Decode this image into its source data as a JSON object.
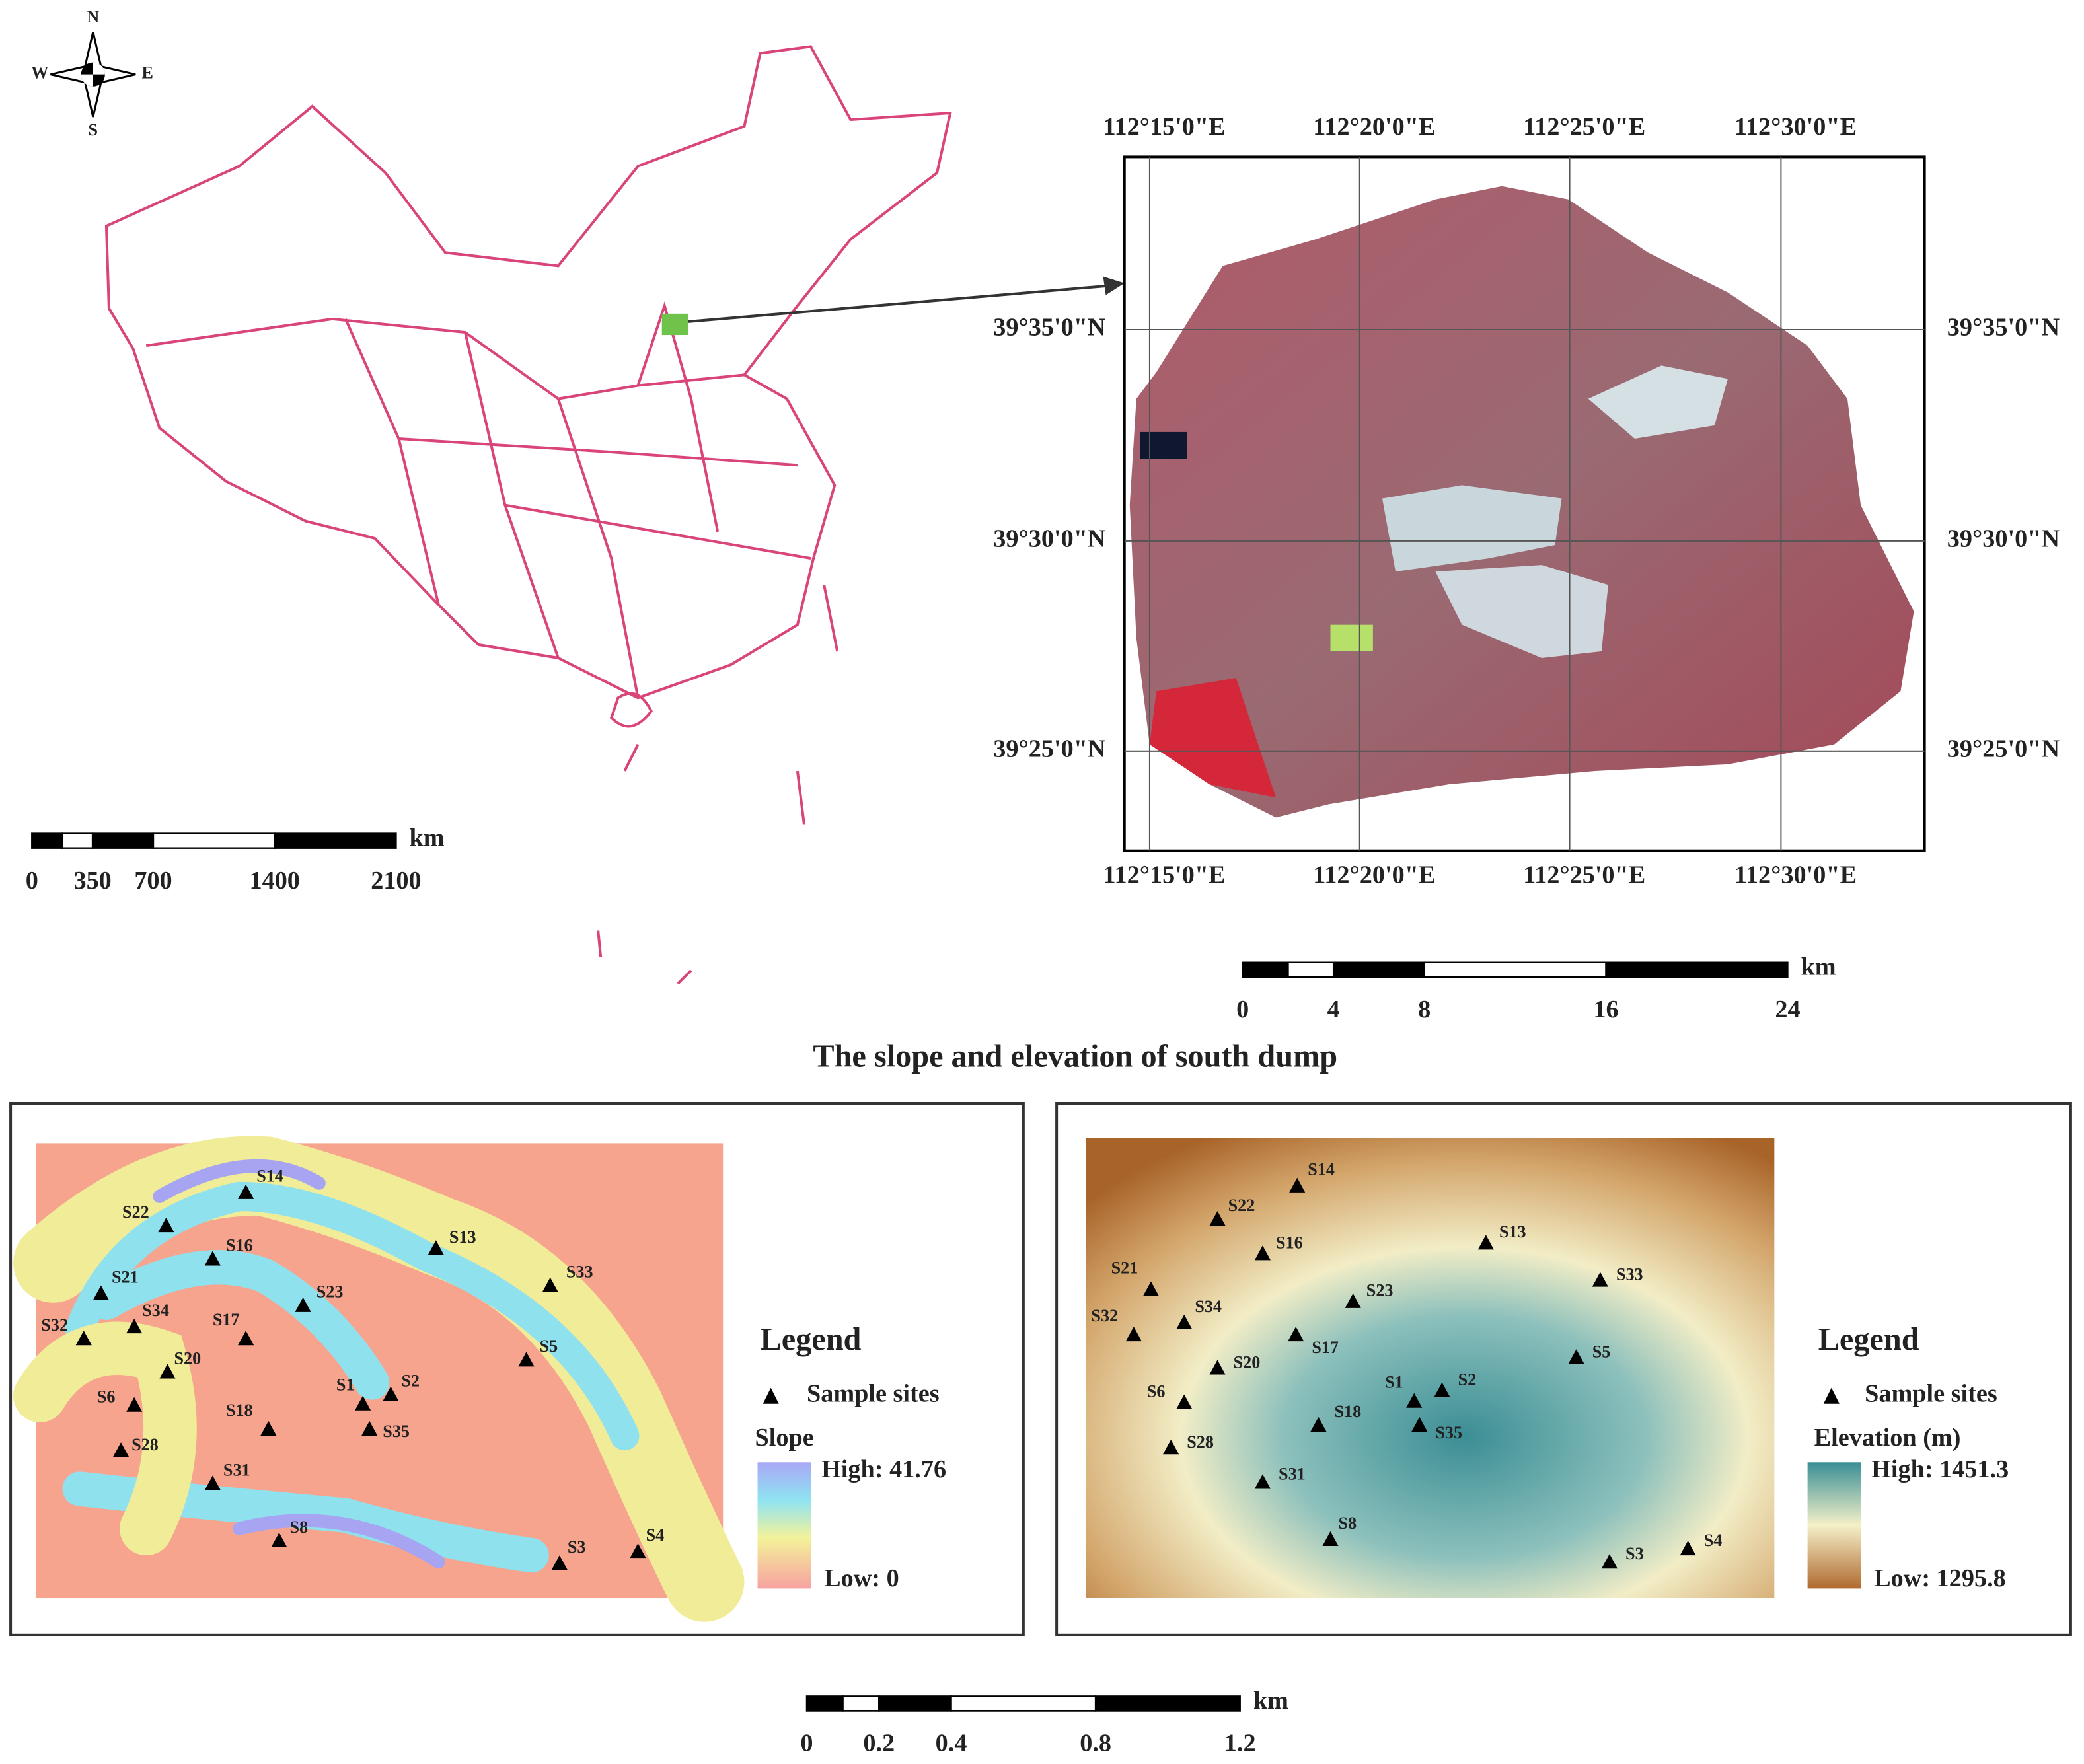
{
  "compass": {
    "n": "N",
    "s": "S",
    "e": "E",
    "w": "W"
  },
  "china_scale": {
    "unit": "km",
    "ticks": [
      0,
      350,
      700,
      1400,
      2100
    ]
  },
  "inset": {
    "top_labels": [
      "112°15'0\"E",
      "112°20'0\"E",
      "112°25'0\"E",
      "112°30'0\"E"
    ],
    "bottom_labels": [
      "112°15'0\"E",
      "112°20'0\"E",
      "112°25'0\"E",
      "112°30'0\"E"
    ],
    "left_labels": [
      "39°35'0\"N",
      "39°30'0\"N",
      "39°25'0\"N"
    ],
    "right_labels": [
      "39°35'0\"N",
      "39°30'0\"N",
      "39°25'0\"N"
    ]
  },
  "inset_scale": {
    "unit": "km",
    "ticks": [
      0,
      4,
      8,
      16,
      24
    ]
  },
  "title": "The slope and elevation of south dump",
  "slope_panel": {
    "sites": [
      "S14",
      "S22",
      "S16",
      "S13",
      "S21",
      "S33",
      "S23",
      "S34",
      "S32",
      "S17",
      "S5",
      "S20",
      "S1",
      "S2",
      "S6",
      "S18",
      "S35",
      "S28",
      "S31",
      "S8",
      "S3",
      "S4"
    ],
    "legend": {
      "title": "Legend",
      "sample": "Sample sites",
      "layer": "Slope",
      "high": "High: 41.76",
      "low": "Low: 0"
    }
  },
  "elevation_panel": {
    "sites": [
      "S14",
      "S22",
      "S16",
      "S13",
      "S21",
      "S33",
      "S23",
      "S34",
      "S32",
      "S17",
      "S5",
      "S20",
      "S1",
      "S2",
      "S6",
      "S18",
      "S35",
      "S28",
      "S31",
      "S8",
      "S3",
      "S4"
    ],
    "legend": {
      "title": "Legend",
      "sample": "Sample sites",
      "layer": "Elevation (m)",
      "high": "High: 1451.3",
      "low": "Low: 1295.8"
    }
  },
  "bottom_scale": {
    "unit": "km",
    "ticks": [
      0,
      0.2,
      0.4,
      0.8,
      1.2
    ]
  }
}
